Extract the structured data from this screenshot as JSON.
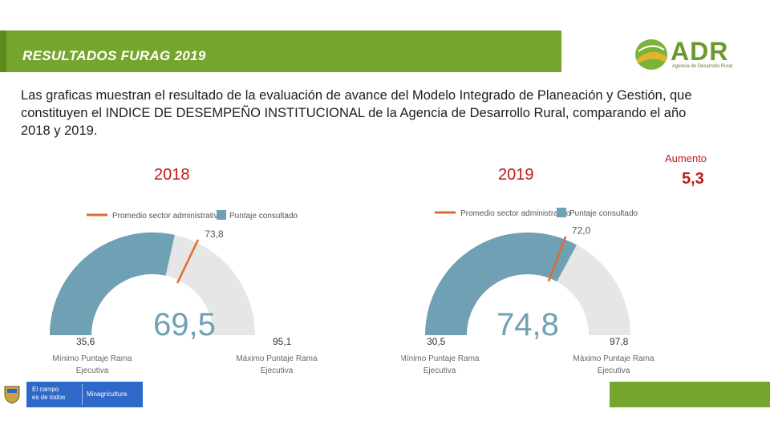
{
  "banner": {
    "title": "RESULTADOS FURAG 2019"
  },
  "logo": {
    "name": "ADR",
    "subtitle": "Agencia de Desarrollo Rural"
  },
  "intro": {
    "text": "Las graficas muestran el resultado de la evaluación de avance del Modelo Integrado de Planeación y Gestión, que constituyen el INDICE DE DESEMPEÑO INSTITUCIONAL de la Agencia de Desarrollo Rural, comparando el año 2018 y 2019."
  },
  "increase": {
    "label": "Aumento",
    "value": "5,3"
  },
  "colors": {
    "banner": "#76a52e",
    "score": "#6fa0b4",
    "track": "#e6e6e6",
    "average_marker": "#e26b2c",
    "year_text": "#c01818",
    "value_text": "#6fa0b4"
  },
  "chart_data": [
    {
      "type": "gauge",
      "title": "2018",
      "legend": [
        "Promedio sector administrativo",
        "Puntaje consultado"
      ],
      "min": 35.6,
      "max": 95.1,
      "value": 69.5,
      "average": 73.8,
      "min_label": "35,6",
      "max_label": "95,1",
      "value_label": "69,5",
      "average_label": "73,8",
      "min_caption_1": "Mínimo Puntaje Rama",
      "min_caption_2": "Ejecutiva",
      "max_caption_1": "Máximo Puntaje Rama",
      "max_caption_2": "Ejecutiva"
    },
    {
      "type": "gauge",
      "title": "2019",
      "legend": [
        "Promedio sector administrativo",
        "Puntaje consultado"
      ],
      "min": 30.5,
      "max": 97.8,
      "value": 74.8,
      "average": 72.0,
      "min_label": "30,5",
      "max_label": "97,8",
      "value_label": "74,8",
      "average_label": "72,0",
      "min_caption_1": "Mínimo Puntaje Rama",
      "min_caption_2": "Ejecutiva",
      "max_caption_1": "Máximo Puntaje Rama",
      "max_caption_2": "Ejecutiva"
    }
  ],
  "footer": {
    "campo_line1": "El campo",
    "campo_line2": "es de todos",
    "ministry": "Minagricultura"
  }
}
